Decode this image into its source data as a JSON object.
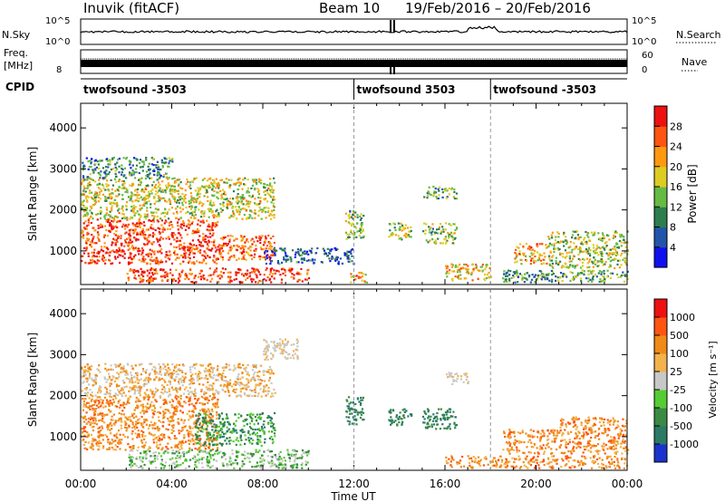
{
  "header": {
    "station": "Inuvik (fitACF)",
    "beam": "Beam 10",
    "date_range": "19/Feb/2016 – 20/Feb/2016"
  },
  "status_panels": {
    "nsky_label": "N.Sky",
    "nsky_ticks": [
      "10^5",
      "10^0"
    ],
    "nsearch_label": "N.Search",
    "nsearch_ticks": [
      "10^5",
      "10^0"
    ],
    "freq_label": "Freq.",
    "freq_unit": "[MHz]",
    "freq_ticks": [
      "8"
    ],
    "nave_label": "Nave",
    "nave_ticks": [
      "60",
      "0"
    ],
    "cpid_label": "CPID",
    "cpid_segments": [
      {
        "label": "twofsound -3503",
        "start_hour": 0
      },
      {
        "label": "twofsound 3503",
        "start_hour": 12
      },
      {
        "label": "twofsound -3503",
        "start_hour": 18
      }
    ]
  },
  "chart_data": [
    {
      "type": "heatmap",
      "panel": "power",
      "ylabel": "Slant Range [km]",
      "ylim": [
        180,
        4600
      ],
      "yticks": [
        1000,
        2000,
        3000,
        4000
      ],
      "xlim": [
        0,
        24
      ],
      "colorbar_label": "Power [dB]",
      "colorbar_ticks": [
        "4",
        "8",
        "12",
        "16",
        "20",
        "24",
        "28"
      ],
      "colorbar_colors": [
        "#1010ee",
        "#2255aa",
        "#2e7d4f",
        "#66bb44",
        "#ddcc22",
        "#ff9911",
        "#ff5511",
        "#ee1111"
      ],
      "scatter_regions": [
        {
          "hours": [
            0,
            6
          ],
          "range_km": [
            700,
            1800
          ],
          "level": 0.92
        },
        {
          "hours": [
            0,
            8.5
          ],
          "range_km": [
            1800,
            2800
          ],
          "level": 0.55
        },
        {
          "hours": [
            0,
            4
          ],
          "range_km": [
            2800,
            3300
          ],
          "level": 0.3
        },
        {
          "hours": [
            6,
            8.5
          ],
          "range_km": [
            800,
            1400
          ],
          "level": 0.85
        },
        {
          "hours": [
            2,
            10
          ],
          "range_km": [
            250,
            600
          ],
          "level": 0.92
        },
        {
          "hours": [
            8,
            12
          ],
          "range_km": [
            700,
            1100
          ],
          "level": 0.15
        },
        {
          "hours": [
            11.8,
            12.6
          ],
          "range_km": [
            250,
            500
          ],
          "level": 0.7
        },
        {
          "hours": [
            11.6,
            12.4
          ],
          "range_km": [
            1300,
            2000
          ],
          "level": 0.45
        },
        {
          "hours": [
            13.5,
            14.5
          ],
          "range_km": [
            1300,
            1700
          ],
          "level": 0.5
        },
        {
          "hours": [
            15,
            16.5
          ],
          "range_km": [
            1200,
            1700
          ],
          "level": 0.45
        },
        {
          "hours": [
            15,
            16.5
          ],
          "range_km": [
            2300,
            2600
          ],
          "level": 0.4
        },
        {
          "hours": [
            16,
            18
          ],
          "range_km": [
            300,
            700
          ],
          "level": 0.65
        },
        {
          "hours": [
            19,
            20.5
          ],
          "range_km": [
            700,
            1200
          ],
          "level": 0.7
        },
        {
          "hours": [
            20.5,
            24
          ],
          "range_km": [
            600,
            1500
          ],
          "level": 0.5
        },
        {
          "hours": [
            18.5,
            24
          ],
          "range_km": [
            250,
            550
          ],
          "level": 0.35
        }
      ]
    },
    {
      "type": "heatmap",
      "panel": "velocity",
      "ylabel": "Slant Range [km]",
      "xlabel": "Time UT",
      "ylim": [
        180,
        4600
      ],
      "yticks": [
        1000,
        2000,
        3000,
        4000
      ],
      "xlim": [
        0,
        24
      ],
      "xticks": [
        "00:00",
        "04:00",
        "08:00",
        "12:00",
        "16:00",
        "20:00",
        "00:00"
      ],
      "colorbar_label": "Velocity [m s⁻¹]",
      "colorbar_ticks": [
        "1000",
        "500",
        "100",
        "25",
        "-25",
        "-100",
        "-500",
        "-1000"
      ],
      "colorbar_colors": [
        "#1a33cc",
        "#2a7a66",
        "#3a8a44",
        "#55cc33",
        "#c8c8c8",
        "#f3b24b",
        "#f08a18",
        "#ff5511",
        "#ee1111"
      ],
      "scatter_regions": [
        {
          "hours": [
            0,
            6
          ],
          "range_km": [
            700,
            2000
          ],
          "class": "orange"
        },
        {
          "hours": [
            0,
            8.5
          ],
          "range_km": [
            2000,
            2800
          ],
          "class": "orange-light"
        },
        {
          "hours": [
            5,
            8.5
          ],
          "range_km": [
            800,
            1600
          ],
          "class": "green"
        },
        {
          "hours": [
            8,
            9.5
          ],
          "range_km": [
            2900,
            3400
          ],
          "class": "grey"
        },
        {
          "hours": [
            2,
            10
          ],
          "range_km": [
            250,
            700
          ],
          "class": "grey-green"
        },
        {
          "hours": [
            11.6,
            12.4
          ],
          "range_km": [
            1300,
            2000
          ],
          "class": "teal"
        },
        {
          "hours": [
            13.5,
            14.5
          ],
          "range_km": [
            1300,
            1700
          ],
          "class": "teal"
        },
        {
          "hours": [
            15,
            16.5
          ],
          "range_km": [
            1200,
            1700
          ],
          "class": "teal"
        },
        {
          "hours": [
            16,
            17
          ],
          "range_km": [
            2300,
            2600
          ],
          "class": "grey"
        },
        {
          "hours": [
            18.5,
            21
          ],
          "range_km": [
            600,
            1200
          ],
          "class": "orange"
        },
        {
          "hours": [
            21,
            24
          ],
          "range_km": [
            600,
            1500
          ],
          "class": "orange"
        },
        {
          "hours": [
            16,
            24
          ],
          "range_km": [
            250,
            550
          ],
          "class": "orange"
        }
      ]
    }
  ]
}
